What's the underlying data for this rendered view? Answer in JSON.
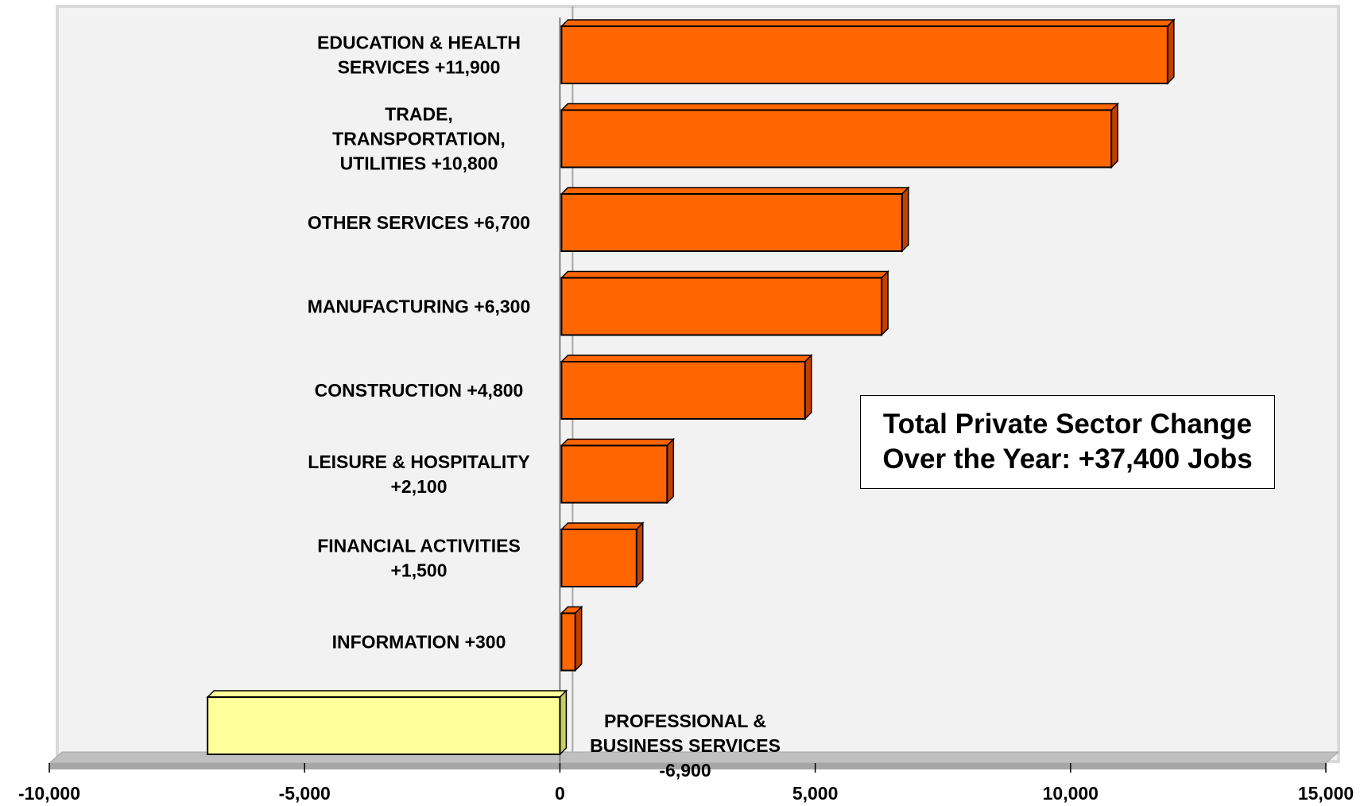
{
  "chart_data": {
    "type": "bar",
    "orientation": "horizontal",
    "categories": [
      [
        "EDUCATION & HEALTH",
        "SERVICES  +11,900"
      ],
      [
        "TRADE,",
        "TRANSPORTATION,",
        "UTILITIES +10,800"
      ],
      [
        "OTHER SERVICES +6,700"
      ],
      [
        "MANUFACTURING +6,300"
      ],
      [
        "CONSTRUCTION +4,800"
      ],
      [
        "LEISURE & HOSPITALITY",
        "+2,100"
      ],
      [
        "FINANCIAL ACTIVITIES",
        "+1,500"
      ],
      [
        "INFORMATION +300"
      ],
      [
        "PROFESSIONAL &",
        "BUSINESS SERVICES",
        "-6,900"
      ]
    ],
    "values": [
      11900,
      10800,
      6700,
      6300,
      4800,
      2100,
      1500,
      300,
      -6900
    ],
    "xlim": [
      -10000,
      15000
    ],
    "xticks": [
      -10000,
      -5000,
      0,
      5000,
      10000,
      15000
    ],
    "xtick_labels": [
      "-10,000",
      "-5,000",
      "0",
      "5,000",
      "10,000",
      "15,000"
    ],
    "grid": false,
    "legend": "none",
    "colors": {
      "positive_bar": "#FF6600",
      "positive_bar_side": "#C04000",
      "negative_bar": "#FFFF99",
      "negative_bar_side": "#CCCC66",
      "plot_background": "#F2F2F2",
      "plot_frame": "#D9D9D9",
      "floor": "#C0C0C0"
    },
    "annotation": {
      "line1": "Total Private Sector Change",
      "line2": "Over the Year: +37,400 Jobs"
    }
  }
}
